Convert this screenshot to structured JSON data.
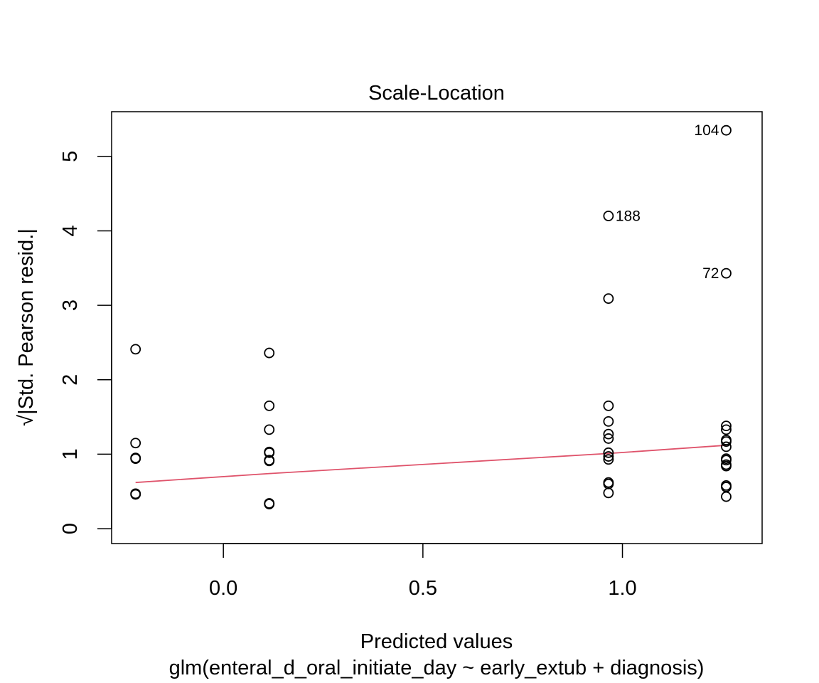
{
  "chart_data": {
    "type": "scatter",
    "title": "Scale-Location",
    "xlabel": "Predicted values",
    "xlabel2": "glm(enteral_d_oral_initiate_day ~ early_extub + diagnosis)",
    "ylabel": "√|Std. Pearson resid.|",
    "xlim": [
      -0.28,
      1.35
    ],
    "ylim": [
      -0.2,
      5.6
    ],
    "xticks": [
      0.0,
      0.5,
      1.0
    ],
    "xtick_labels": [
      "0.0",
      "0.5",
      "1.0"
    ],
    "yticks": [
      0,
      1,
      2,
      3,
      4,
      5
    ],
    "ytick_labels": [
      "0",
      "1",
      "2",
      "3",
      "4",
      "5"
    ],
    "grid": false,
    "points": [
      {
        "x": -0.22,
        "y": 2.41
      },
      {
        "x": -0.22,
        "y": 1.15
      },
      {
        "x": -0.22,
        "y": 0.95
      },
      {
        "x": -0.22,
        "y": 0.94
      },
      {
        "x": -0.22,
        "y": 0.47
      },
      {
        "x": -0.22,
        "y": 0.46
      },
      {
        "x": 0.115,
        "y": 2.36
      },
      {
        "x": 0.115,
        "y": 1.65
      },
      {
        "x": 0.115,
        "y": 1.33
      },
      {
        "x": 0.115,
        "y": 1.03
      },
      {
        "x": 0.115,
        "y": 1.02
      },
      {
        "x": 0.115,
        "y": 0.92
      },
      {
        "x": 0.115,
        "y": 0.91
      },
      {
        "x": 0.115,
        "y": 0.34
      },
      {
        "x": 0.115,
        "y": 0.33
      },
      {
        "x": 0.965,
        "y": 4.2
      },
      {
        "x": 0.965,
        "y": 3.09
      },
      {
        "x": 0.965,
        "y": 1.65
      },
      {
        "x": 0.965,
        "y": 1.44
      },
      {
        "x": 0.965,
        "y": 1.27
      },
      {
        "x": 0.965,
        "y": 1.21
      },
      {
        "x": 0.965,
        "y": 1.02
      },
      {
        "x": 0.965,
        "y": 0.97
      },
      {
        "x": 0.965,
        "y": 0.93
      },
      {
        "x": 0.965,
        "y": 0.62
      },
      {
        "x": 0.965,
        "y": 0.6
      },
      {
        "x": 0.965,
        "y": 0.48
      },
      {
        "x": 1.26,
        "y": 5.35
      },
      {
        "x": 1.26,
        "y": 3.43
      },
      {
        "x": 1.26,
        "y": 1.38
      },
      {
        "x": 1.26,
        "y": 1.33
      },
      {
        "x": 1.26,
        "y": 1.19
      },
      {
        "x": 1.26,
        "y": 1.17
      },
      {
        "x": 1.26,
        "y": 1.1
      },
      {
        "x": 1.26,
        "y": 0.94
      },
      {
        "x": 1.26,
        "y": 0.92
      },
      {
        "x": 1.26,
        "y": 0.86
      },
      {
        "x": 1.26,
        "y": 0.84
      },
      {
        "x": 1.26,
        "y": 0.58
      },
      {
        "x": 1.26,
        "y": 0.56
      },
      {
        "x": 1.26,
        "y": 0.43
      }
    ],
    "point_labels": [
      {
        "x": 1.26,
        "y": 5.35,
        "label": "104",
        "side": "left"
      },
      {
        "x": 0.965,
        "y": 4.2,
        "label": "188",
        "side": "right"
      },
      {
        "x": 1.26,
        "y": 3.43,
        "label": "72",
        "side": "left"
      }
    ],
    "smooth_line": {
      "x": [
        -0.22,
        0.115,
        0.965,
        1.26
      ],
      "y": [
        0.62,
        0.74,
        1.01,
        1.12
      ],
      "color": "#DF536B"
    }
  }
}
